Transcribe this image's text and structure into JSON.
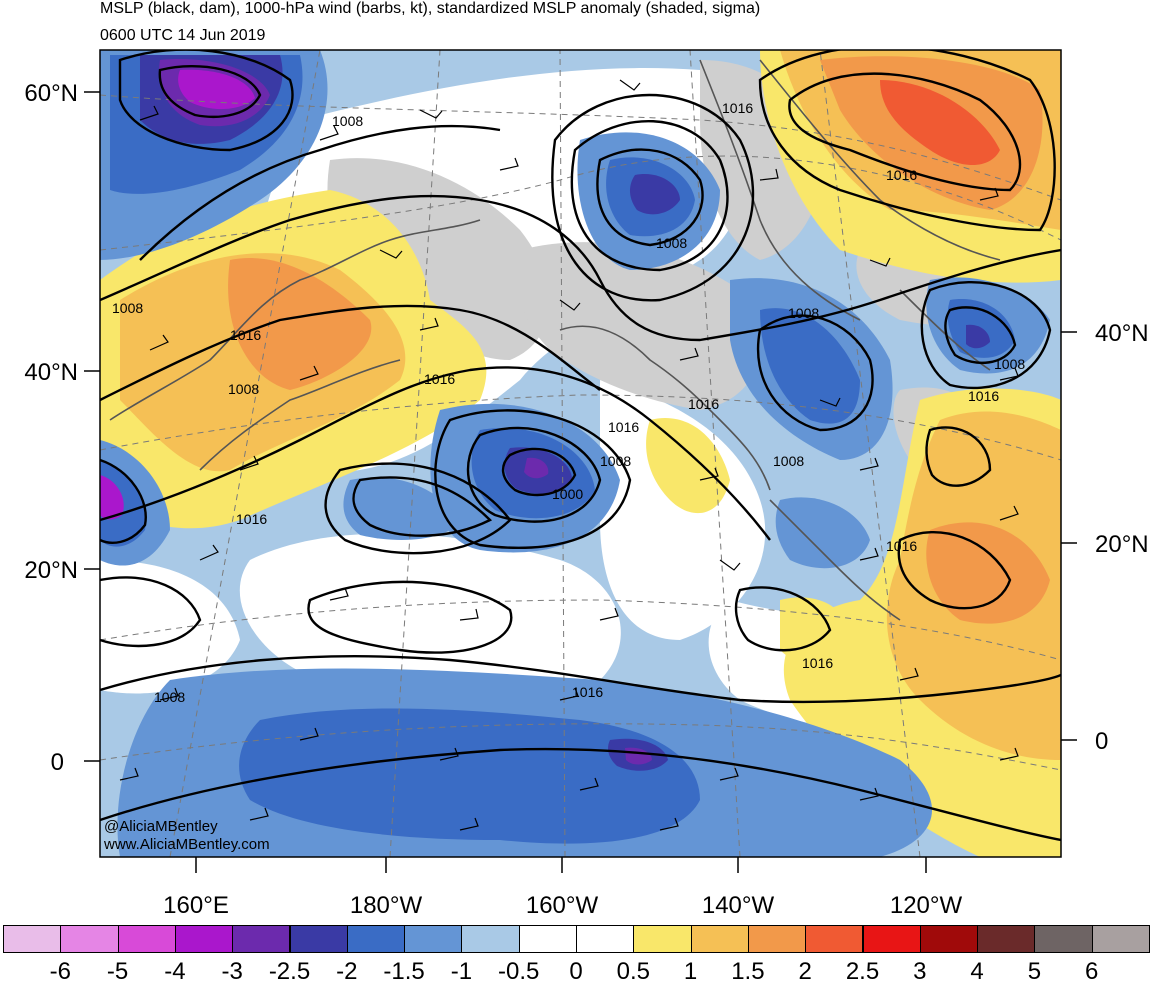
{
  "header": {
    "title": "MSLP (black, dam), 1000-hPa wind (barbs, kt), standardized MSLP anomaly (shaded, sigma)",
    "time": "0600 UTC 14 Jun 2019"
  },
  "map": {
    "lat_labels_left": [
      "60°N",
      "40°N",
      "20°N",
      "0"
    ],
    "lat_labels_right": [
      "40°N",
      "20°N",
      "0"
    ],
    "lon_labels": [
      "160°E",
      "180°W",
      "160°W",
      "140°W",
      "120°W"
    ],
    "isobar_labels": [
      "1008",
      "1016",
      "1008",
      "1008",
      "1016",
      "1016",
      "1016",
      "1008",
      "1016",
      "1008",
      "1000",
      "1016",
      "1008",
      "1008",
      "1016",
      "1008",
      "1016",
      "1016",
      "1016",
      "1008",
      "1016"
    ],
    "credit_1": "@AliciaMBentley",
    "credit_2": "www.AliciaMBentley.com"
  },
  "colorbar": {
    "colors": [
      "#e9bde9",
      "#e585e5",
      "#d84ad8",
      "#aa17cc",
      "#6c2aad",
      "#3a3aa5",
      "#3a6cc5",
      "#6495d5",
      "#a9c9e6",
      "#ffffff",
      "#ffffff",
      "#f9e76a",
      "#f5c055",
      "#f2994a",
      "#f05a33",
      "#e81515",
      "#a00a0a",
      "#6a2a2a",
      "#6e6464",
      "#a8a0a0"
    ],
    "labels": [
      "-6",
      "-5",
      "-4",
      "-3",
      "-2.5",
      "-2",
      "-1.5",
      "-1",
      "-0.5",
      "0",
      "0.5",
      "1",
      "1.5",
      "2",
      "2.5",
      "3",
      "4",
      "5",
      "6"
    ]
  }
}
